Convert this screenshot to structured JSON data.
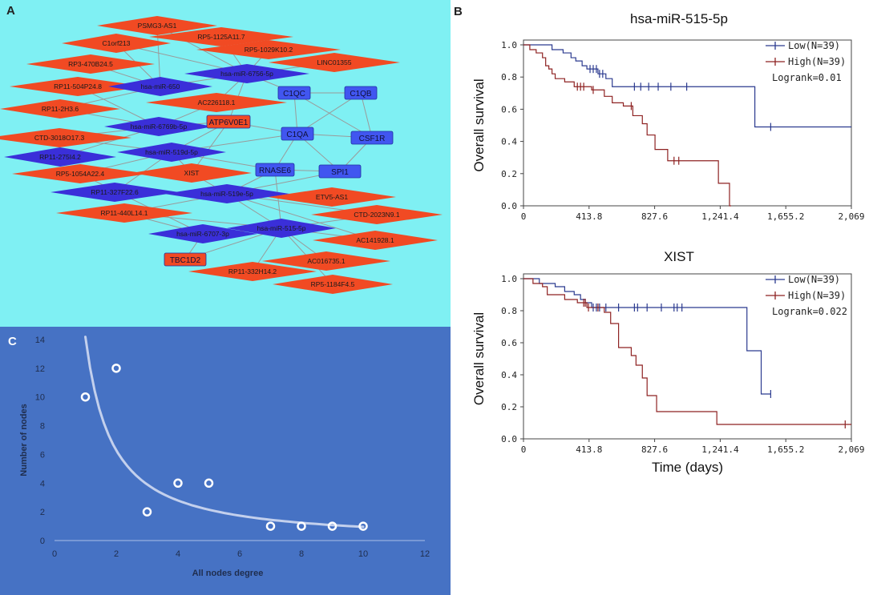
{
  "colors": {
    "network_bg": "#7ff0f3",
    "lnc": "#f14a23",
    "mirna": "#3a2fd9",
    "mrna": "#4156f0",
    "scatter_bg": "#4672c4",
    "low": "#2b3a8f",
    "high": "#8e2222"
  },
  "panel_labels": {
    "a": "A",
    "b": "B",
    "c": "C"
  },
  "network": {
    "lncrnas": [
      "PSMG3-AS1",
      "C1orf213",
      "RP5-1125A11.7",
      "RP3-470B24.5",
      "RP5-1029K10.2",
      "LINC01355",
      "RP11-504P24.8",
      "AC226118.1",
      "RP11-2H3.6",
      "CTD-3018O17.3",
      "XIST",
      "RP5-1054A22.4",
      "ETV5-AS1",
      "RP11-440L14.1",
      "CTD-2023N9.1",
      "AC141928.1",
      "AC016735.1",
      "RP11-332H14.2",
      "RP5-1184F4.5"
    ],
    "mirnas": [
      "hsa-miR-650",
      "hsa-miR-6756-5p",
      "hsa-miR-6769b-5p",
      "hsa-miR-519d-5p",
      "RP11-275I4.2",
      "RP11-327F22.6",
      "hsa-miR-519e-5p",
      "hsa-miR-515-5p",
      "hsa-miR-6707-3p"
    ],
    "mrnas": [
      "C1QC",
      "C1QB",
      "ATP6V0E1",
      "C1QA",
      "CSF1R",
      "RNASE6",
      "SPI1",
      "TBC1D2"
    ]
  },
  "chart_data": [
    {
      "type": "line",
      "title": "hsa-miR-515-5p",
      "xlabel": "",
      "ylabel": "Overall survival",
      "xticks": [
        "0",
        "413.8",
        "827.6",
        "1,241.4",
        "1,655.2",
        "2,069"
      ],
      "yticks": [
        "0.0",
        "0.2",
        "0.4",
        "0.6",
        "0.8",
        "1.0"
      ],
      "xlim": [
        0,
        2069
      ],
      "ylim": [
        0,
        1.0
      ],
      "legend": [
        "Low(N=39)",
        "High(N=39)"
      ],
      "annotation": "Logrank=0.01",
      "series": [
        {
          "name": "Low(N=39)",
          "steps": [
            [
              0,
              1.0
            ],
            [
              180,
              0.97
            ],
            [
              250,
              0.95
            ],
            [
              300,
              0.92
            ],
            [
              330,
              0.9
            ],
            [
              370,
              0.87
            ],
            [
              400,
              0.85
            ],
            [
              470,
              0.82
            ],
            [
              520,
              0.79
            ],
            [
              560,
              0.74
            ],
            [
              1420,
              0.74
            ],
            [
              1460,
              0.49
            ],
            [
              2069,
              0.49
            ]
          ]
        },
        {
          "name": "High(N=39)",
          "steps": [
            [
              0,
              1.0
            ],
            [
              40,
              0.97
            ],
            [
              80,
              0.95
            ],
            [
              120,
              0.92
            ],
            [
              140,
              0.87
            ],
            [
              160,
              0.85
            ],
            [
              180,
              0.82
            ],
            [
              200,
              0.79
            ],
            [
              260,
              0.77
            ],
            [
              320,
              0.74
            ],
            [
              430,
              0.72
            ],
            [
              510,
              0.68
            ],
            [
              560,
              0.64
            ],
            [
              630,
              0.62
            ],
            [
              690,
              0.56
            ],
            [
              750,
              0.51
            ],
            [
              780,
              0.44
            ],
            [
              830,
              0.35
            ],
            [
              910,
              0.28
            ],
            [
              1230,
              0.14
            ],
            [
              1300,
              0.0
            ],
            [
              1310,
              0.0
            ]
          ]
        }
      ],
      "censor_low_x": [
        420,
        440,
        460,
        480,
        500,
        700,
        740,
        790,
        850,
        930,
        1030,
        1560
      ],
      "censor_high_x": [
        340,
        360,
        380,
        440,
        680,
        950,
        980
      ]
    },
    {
      "type": "line",
      "title": "XIST",
      "xlabel": "Time (days)",
      "ylabel": "Overall survival",
      "xticks": [
        "0",
        "413.8",
        "827.6",
        "1,241.4",
        "1,655.2",
        "2,069"
      ],
      "yticks": [
        "0.0",
        "0.2",
        "0.4",
        "0.6",
        "0.8",
        "1.0"
      ],
      "xlim": [
        0,
        2069
      ],
      "ylim": [
        0,
        1.0
      ],
      "legend": [
        "Low(N=39)",
        "High(N=39)"
      ],
      "annotation": "Logrank=0.022",
      "series": [
        {
          "name": "Low(N=39)",
          "steps": [
            [
              0,
              1.0
            ],
            [
              100,
              0.97
            ],
            [
              200,
              0.95
            ],
            [
              260,
              0.92
            ],
            [
              320,
              0.9
            ],
            [
              360,
              0.87
            ],
            [
              390,
              0.85
            ],
            [
              430,
              0.82
            ],
            [
              1300,
              0.82
            ],
            [
              1410,
              0.55
            ],
            [
              1500,
              0.28
            ],
            [
              1560,
              0.28
            ]
          ]
        },
        {
          "name": "High(N=39)",
          "steps": [
            [
              0,
              1.0
            ],
            [
              60,
              0.97
            ],
            [
              120,
              0.95
            ],
            [
              150,
              0.9
            ],
            [
              260,
              0.87
            ],
            [
              340,
              0.85
            ],
            [
              400,
              0.82
            ],
            [
              510,
              0.79
            ],
            [
              550,
              0.72
            ],
            [
              600,
              0.57
            ],
            [
              680,
              0.52
            ],
            [
              710,
              0.46
            ],
            [
              750,
              0.38
            ],
            [
              780,
              0.27
            ],
            [
              840,
              0.17
            ],
            [
              1220,
              0.09
            ],
            [
              2069,
              0.09
            ]
          ]
        }
      ],
      "censor_low_x": [
        440,
        460,
        480,
        520,
        600,
        700,
        720,
        780,
        870,
        950,
        970,
        1000,
        1560
      ],
      "censor_high_x": [
        380,
        390,
        410,
        470,
        2030
      ]
    },
    {
      "type": "scatter",
      "title": "",
      "xlabel": "All nodes degree",
      "ylabel": "Number of nodes",
      "xticks": [
        "0",
        "2",
        "4",
        "6",
        "8",
        "10",
        "12"
      ],
      "yticks": [
        "0",
        "2",
        "4",
        "6",
        "8",
        "10",
        "12",
        "14"
      ],
      "xlim": [
        0,
        12
      ],
      "ylim": [
        0,
        14
      ],
      "points": [
        [
          1,
          10
        ],
        [
          2,
          12
        ],
        [
          3,
          2
        ],
        [
          4,
          4
        ],
        [
          5,
          4
        ],
        [
          7,
          1
        ],
        [
          8,
          1
        ],
        [
          9,
          1
        ],
        [
          10,
          1
        ]
      ],
      "trend": "power"
    }
  ]
}
